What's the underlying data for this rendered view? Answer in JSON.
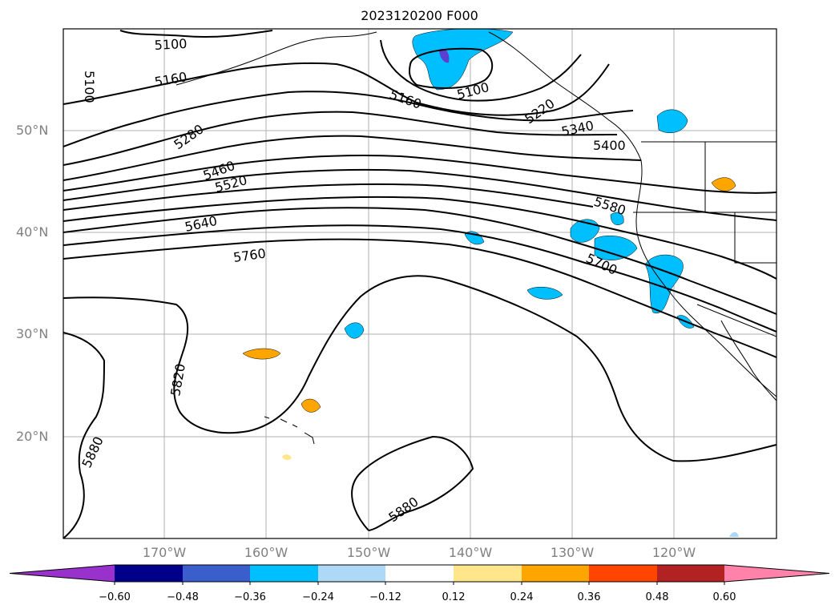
{
  "title": "2023120200 F000",
  "lat_labels": [
    "50°N",
    "40°N",
    "30°N",
    "20°N"
  ],
  "lon_labels": [
    "170°W",
    "160°W",
    "150°W",
    "140°W",
    "130°W",
    "120°W"
  ],
  "contour_labels": [
    "5100",
    "5160",
    "5100",
    "5160",
    "5100",
    "5220",
    "5280",
    "5340",
    "5400",
    "5460",
    "5520",
    "5580",
    "5640",
    "5700",
    "5760",
    "5820",
    "5880",
    "5880"
  ],
  "colorbar": {
    "ticks": [
      "−0.60",
      "−0.48",
      "−0.36",
      "−0.24",
      "−0.12",
      "0.12",
      "0.24",
      "0.36",
      "0.48",
      "0.60"
    ],
    "colors": [
      "#9932cc",
      "#00008b",
      "#3a5fcd",
      "#00bfff",
      "#add8f6",
      "#ffffff",
      "#ffe68a",
      "#ffa500",
      "#ff4500",
      "#b22222",
      "#ff82ab"
    ]
  }
}
